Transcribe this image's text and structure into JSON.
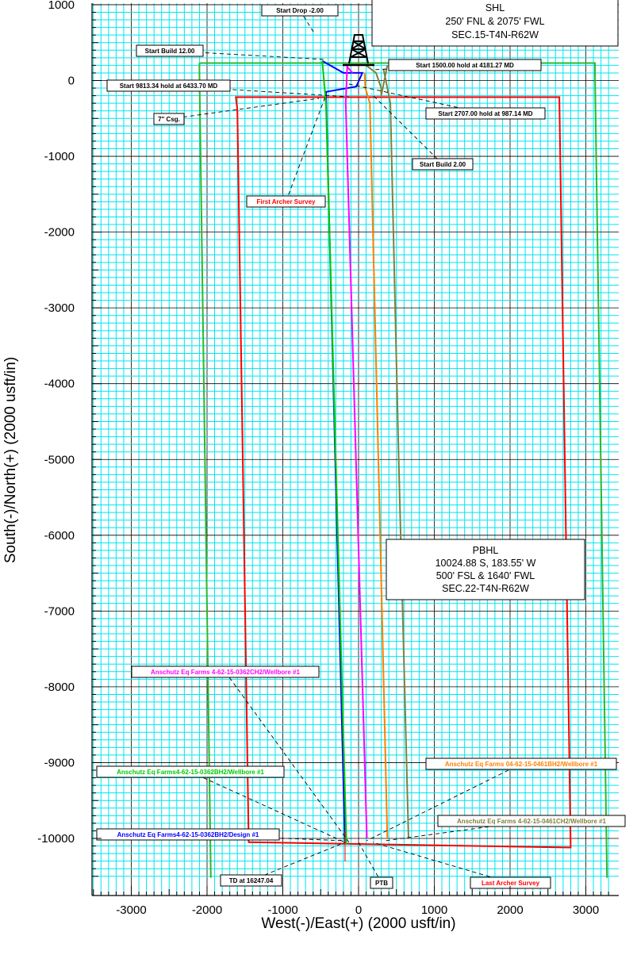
{
  "chart_data": {
    "type": "line",
    "xlabel": "West(-)/East(+) (2000 usft/in)",
    "ylabel": "South(-)/North(+) (2000 usft/in)",
    "xlim": [
      -3500,
      3300
    ],
    "ylim": [
      -10500,
      1000
    ],
    "x_ticks": [
      -3000,
      -2000,
      -1000,
      0,
      1000,
      2000,
      3000
    ],
    "y_ticks": [
      1000,
      0,
      -1000,
      -2000,
      -3000,
      -4000,
      -5000,
      -6000,
      -7000,
      -8000,
      -9000,
      -10000
    ],
    "grid": true,
    "series": [
      {
        "color": "#2db82d",
        "points": [
          [
            -2100,
            230
          ],
          [
            3120,
            230
          ],
          [
            3120,
            100
          ],
          [
            3280,
            -10520
          ]
        ]
      },
      {
        "color": "#2db82d",
        "points": [
          [
            -2100,
            230
          ],
          [
            -2100,
            100
          ],
          [
            -1950,
            -10520
          ]
        ]
      },
      {
        "color": "#ff0000",
        "points": [
          [
            -1600,
            -380
          ],
          [
            -1620,
            -220
          ],
          [
            2650,
            -220
          ],
          [
            2800,
            -10120
          ],
          [
            -1450,
            -10050
          ],
          [
            -1600,
            -380
          ]
        ]
      },
      {
        "color": "#0000ff",
        "points": [
          [
            -480,
            260
          ],
          [
            -200,
            100
          ],
          [
            50,
            100
          ],
          [
            -30,
            -80
          ],
          [
            -430,
            -150
          ],
          [
            -180,
            -10050
          ]
        ]
      },
      {
        "color": "#00cc00",
        "points": [
          [
            -480,
            260
          ],
          [
            -430,
            -300
          ],
          [
            -160,
            -10080
          ]
        ]
      },
      {
        "color": "#ff00ff",
        "points": [
          [
            -80,
            100
          ],
          [
            -150,
            180
          ],
          [
            -170,
            -300
          ],
          [
            110,
            -10000
          ]
        ]
      },
      {
        "color": "#ff8000",
        "points": [
          [
            80,
            100
          ],
          [
            90,
            -100
          ],
          [
            150,
            -300
          ],
          [
            380,
            -10000
          ]
        ]
      },
      {
        "color": "#808040",
        "points": [
          [
            330,
            150
          ],
          [
            380,
            -100
          ],
          [
            420,
            -300
          ],
          [
            530,
            -5000
          ],
          [
            660,
            -10000
          ]
        ]
      },
      {
        "color": "#808040",
        "points": [
          [
            100,
            200
          ],
          [
            230,
            100
          ],
          [
            300,
            -100
          ],
          [
            300,
            -200
          ],
          [
            380,
            200
          ]
        ]
      }
    ],
    "annotations": [
      {
        "text": "Start Drop -2.00",
        "color": "#000000"
      },
      {
        "text": "Start Build 12.00",
        "color": "#000000"
      },
      {
        "text": "Start 1500.00 hold at 4181.27 MD",
        "color": "#000000"
      },
      {
        "text": "Start 9813.34 hold at 6433.70 MD",
        "color": "#000000"
      },
      {
        "text": "Start 2707.00 hold at 987.14 MD",
        "color": "#000000"
      },
      {
        "text": "7\" Csg.",
        "color": "#000000"
      },
      {
        "text": "Start Build 2.00",
        "color": "#000000"
      },
      {
        "text": "First Archer Survey",
        "color": "#ff0000"
      },
      {
        "text": "Anschutz Eq Farms 4-62-15-0362CH2/Wellbore #1",
        "color": "#ff00ff"
      },
      {
        "text": "Anschutz Eq Farms4-62-15-0362BH2/Wellbore #1",
        "color": "#00cc00"
      },
      {
        "text": "Anschutz Eq Farms 04-62-15-0461BH2/Wellbore #1",
        "color": "#ff8000"
      },
      {
        "text": "Anschutz Eq Farms 4-62-15-0461CH2/Wellbore #1",
        "color": "#808040"
      },
      {
        "text": "Anschutz Eq Farms4-62-15-0362BH2/Design #1",
        "color": "#0000ff"
      },
      {
        "text": "TD at 16247.04",
        "color": "#000000"
      },
      {
        "text": "PTB",
        "color": "#000000"
      },
      {
        "text": "Last Archer Survey",
        "color": "#ff0000"
      }
    ]
  },
  "shl": {
    "lines": [
      "SHL",
      "250' FNL & 2075' FWL",
      "SEC.15-T4N-R62W"
    ]
  },
  "pbhl": {
    "lines": [
      "PBHL",
      "10024.88 S, 183.55' W",
      "500' FSL & 1640' FWL",
      "SEC.22-T4N-R62W"
    ]
  }
}
